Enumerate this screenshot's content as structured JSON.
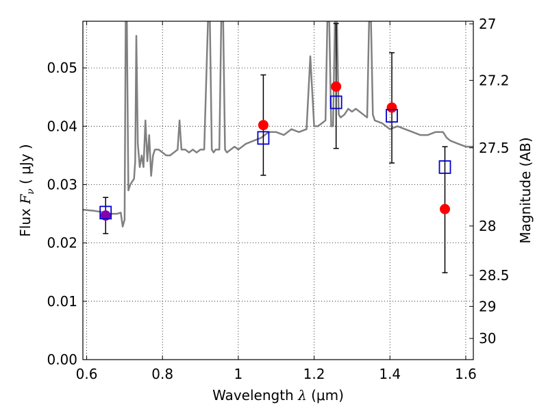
{
  "chart_data": {
    "type": "scatter",
    "xlabel": {
      "prefix": "Wavelength ",
      "symbol": "λ",
      "unit": " (μm)"
    },
    "ylabel": {
      "prefix": "Flux ",
      "symbol": "F",
      "subscript": "ν",
      "unit": " ( μJy )"
    },
    "y2label": "Magnitude (AB)",
    "xlim": [
      0.59,
      1.62
    ],
    "ylim": [
      0.0,
      0.058
    ],
    "x_ticks": [
      0.6,
      0.8,
      1.0,
      1.2,
      1.4,
      1.6
    ],
    "x_tick_labels": [
      "0.6",
      "0.8",
      "1",
      "1.2",
      "1.4",
      "1.6"
    ],
    "y_ticks": [
      0.0,
      0.01,
      0.02,
      0.03,
      0.04,
      0.05
    ],
    "y_tick_labels": [
      "0.00",
      "0.01",
      "0.02",
      "0.03",
      "0.04",
      "0.05"
    ],
    "y2_ticks": [
      27.0,
      27.2,
      27.5,
      28.0,
      28.5,
      29.0,
      30.0
    ],
    "y2_tick_labels": [
      "27",
      "27.2",
      "27.5",
      "28",
      "28.5",
      "29",
      "30"
    ],
    "grid": true,
    "colors": {
      "template": "#808080",
      "observed": "#ff0000",
      "model": "#0000cc",
      "overlap": "#8800aa",
      "errorbar": "#000000"
    },
    "series": [
      {
        "kind": "template-spectrum",
        "x": [
          0.59,
          0.62,
          0.65,
          0.66,
          0.68,
          0.69,
          0.695,
          0.7,
          0.703,
          0.706,
          0.71,
          0.715,
          0.72,
          0.725,
          0.728,
          0.731,
          0.735,
          0.74,
          0.745,
          0.75,
          0.755,
          0.76,
          0.765,
          0.77,
          0.775,
          0.78,
          0.79,
          0.8,
          0.81,
          0.82,
          0.83,
          0.84,
          0.845,
          0.85,
          0.86,
          0.87,
          0.88,
          0.89,
          0.9,
          0.91,
          0.92,
          0.925,
          0.93,
          0.935,
          0.94,
          0.95,
          0.955,
          0.96,
          0.965,
          0.97,
          0.98,
          0.99,
          1.0,
          1.02,
          1.04,
          1.06,
          1.08,
          1.1,
          1.12,
          1.14,
          1.16,
          1.18,
          1.19,
          1.2,
          1.21,
          1.22,
          1.23,
          1.235,
          1.24,
          1.245,
          1.25,
          1.255,
          1.26,
          1.265,
          1.27,
          1.28,
          1.29,
          1.3,
          1.31,
          1.32,
          1.33,
          1.34,
          1.345,
          1.35,
          1.355,
          1.36,
          1.38,
          1.4,
          1.42,
          1.44,
          1.46,
          1.48,
          1.5,
          1.52,
          1.54,
          1.55,
          1.56,
          1.58,
          1.6,
          1.62
        ],
        "y": [
          0.0257,
          0.0255,
          0.0252,
          0.025,
          0.025,
          0.0252,
          0.0228,
          0.024,
          0.058,
          0.058,
          0.029,
          0.03,
          0.0305,
          0.031,
          0.034,
          0.0555,
          0.037,
          0.033,
          0.035,
          0.033,
          0.041,
          0.034,
          0.0385,
          0.0315,
          0.035,
          0.036,
          0.036,
          0.0355,
          0.035,
          0.035,
          0.0355,
          0.036,
          0.041,
          0.036,
          0.036,
          0.0355,
          0.036,
          0.0355,
          0.036,
          0.036,
          0.058,
          0.058,
          0.036,
          0.0355,
          0.036,
          0.036,
          0.058,
          0.058,
          0.036,
          0.0355,
          0.036,
          0.0365,
          0.036,
          0.037,
          0.0375,
          0.038,
          0.039,
          0.039,
          0.0385,
          0.0395,
          0.039,
          0.0395,
          0.052,
          0.04,
          0.04,
          0.0405,
          0.041,
          0.058,
          0.058,
          0.04,
          0.04,
          0.058,
          0.058,
          0.042,
          0.0415,
          0.042,
          0.043,
          0.0425,
          0.043,
          0.0425,
          0.042,
          0.0415,
          0.058,
          0.058,
          0.042,
          0.041,
          0.0405,
          0.0395,
          0.04,
          0.0395,
          0.039,
          0.0385,
          0.0385,
          0.039,
          0.039,
          0.038,
          0.0375,
          0.037,
          0.0365,
          0.0365
        ]
      },
      {
        "kind": "observed",
        "x": [
          0.65,
          1.066,
          1.258,
          1.405,
          1.545
        ],
        "y": [
          0.0247,
          0.0402,
          0.0468,
          0.0432,
          0.0258
        ],
        "yerr_low": [
          0.0031,
          0.0086,
          0.0106,
          0.0095,
          0.0109
        ],
        "yerr_high": [
          0.0031,
          0.0086,
          0.0108,
          0.0094,
          0.0107
        ]
      },
      {
        "kind": "model",
        "x": [
          0.65,
          1.066,
          1.258,
          1.405,
          1.545
        ],
        "y": [
          0.0252,
          0.038,
          0.0441,
          0.0418,
          0.033
        ]
      }
    ]
  }
}
